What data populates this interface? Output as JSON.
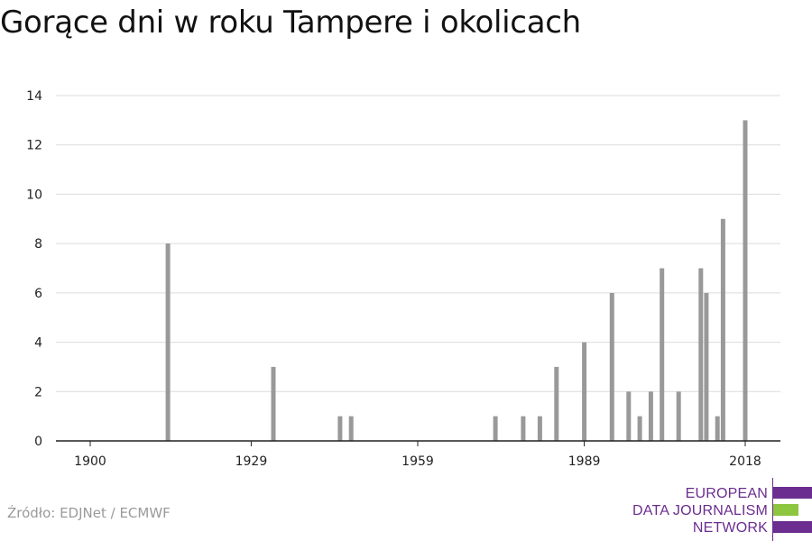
{
  "title": "Gorące dni w roku Tampere i okolicach",
  "source": "Źródło: EDJNet / ECMWF",
  "logo": {
    "lines": [
      "EUROPEAN",
      "DATA JOURNALISM",
      "NETWORK"
    ],
    "colors": {
      "purple": "#6b2d8f",
      "green": "#8dc63f"
    }
  },
  "chart_data": {
    "type": "bar",
    "title": "",
    "xlabel": "",
    "ylabel": "",
    "xlim": [
      1900,
      2018
    ],
    "ylim": [
      0,
      14
    ],
    "yticks": [
      0,
      2,
      4,
      6,
      8,
      10,
      12,
      14
    ],
    "xticks": [
      1900,
      1929,
      1959,
      1989,
      2018
    ],
    "grid": true,
    "bar_color": "#999999",
    "points": [
      {
        "year": 1914,
        "value": 8
      },
      {
        "year": 1933,
        "value": 3
      },
      {
        "year": 1945,
        "value": 1
      },
      {
        "year": 1947,
        "value": 1
      },
      {
        "year": 1973,
        "value": 1
      },
      {
        "year": 1978,
        "value": 1
      },
      {
        "year": 1981,
        "value": 1
      },
      {
        "year": 1984,
        "value": 3
      },
      {
        "year": 1989,
        "value": 4
      },
      {
        "year": 1994,
        "value": 6
      },
      {
        "year": 1997,
        "value": 2
      },
      {
        "year": 1999,
        "value": 1
      },
      {
        "year": 2001,
        "value": 2
      },
      {
        "year": 2003,
        "value": 7
      },
      {
        "year": 2006,
        "value": 2
      },
      {
        "year": 2010,
        "value": 7
      },
      {
        "year": 2011,
        "value": 6
      },
      {
        "year": 2013,
        "value": 1
      },
      {
        "year": 2014,
        "value": 9
      },
      {
        "year": 2018,
        "value": 13
      }
    ]
  }
}
